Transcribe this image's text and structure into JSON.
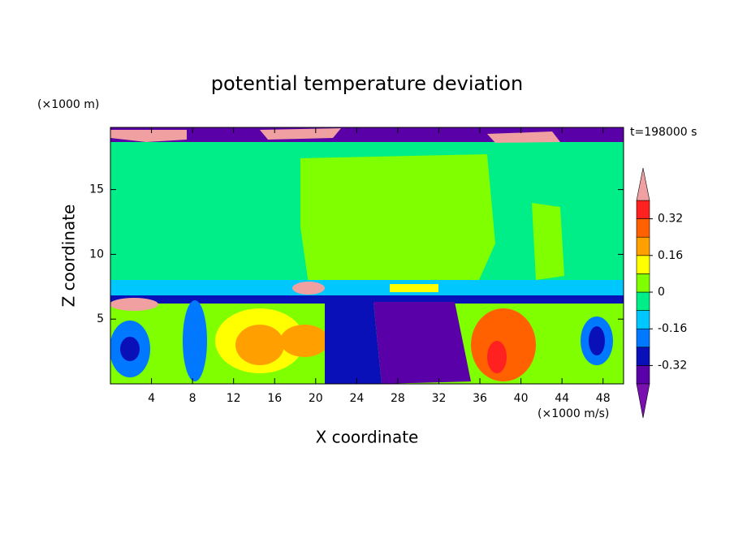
{
  "chart_data": {
    "type": "contourf",
    "title": "potential temperature deviation",
    "y_unit": "(×1000 m)",
    "x_unit": "(×1000 m/s)",
    "time_label": "t=198000 s",
    "xlabel": "X coordinate",
    "ylabel": "Z coordinate",
    "xlim": [
      0,
      50
    ],
    "ylim": [
      0,
      19.8
    ],
    "xticks": [
      4,
      8,
      12,
      16,
      20,
      24,
      28,
      32,
      36,
      40,
      44,
      48
    ],
    "yticks": [
      5,
      10,
      15
    ],
    "clim": [
      -0.4,
      0.4
    ],
    "cticks": [
      0.32,
      0.16,
      0,
      -0.16,
      -0.32
    ],
    "colors": [
      "#5a00a8",
      "#0a10b8",
      "#0078ff",
      "#00c8ff",
      "#00ee88",
      "#80ff00",
      "#ffff00",
      "#ffa000",
      "#ff6000",
      "#ff2020"
    ],
    "under_color": "#7a10b0",
    "over_color": "#f0a0a0"
  }
}
